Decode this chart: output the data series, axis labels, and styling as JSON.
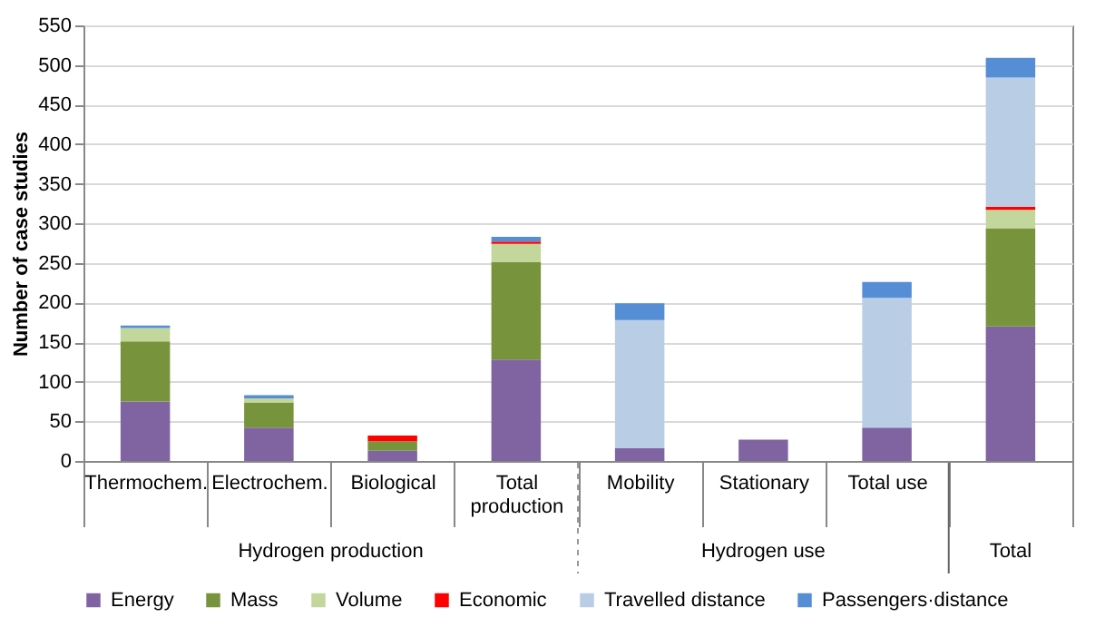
{
  "chart_data": {
    "type": "bar",
    "stacked": true,
    "ylabel": "Number of case studies",
    "categories": [
      "Thermochem.",
      "Electrochem.",
      "Biological",
      "Total production",
      "Mobility",
      "Stationary",
      "Total use",
      null
    ],
    "series": [
      {
        "name": "Energy",
        "color": "#8064a2",
        "values": [
          75,
          42,
          13,
          128,
          16,
          27,
          42,
          170
        ]
      },
      {
        "name": "Mass",
        "color": "#77933c",
        "values": [
          76,
          32,
          12,
          123,
          0,
          0,
          0,
          124
        ]
      },
      {
        "name": "Volume",
        "color": "#c3d69b",
        "values": [
          17,
          5,
          0,
          23,
          0,
          0,
          0,
          23
        ]
      },
      {
        "name": "Economic",
        "color": "#ff0000",
        "values": [
          0,
          0,
          7,
          3,
          0,
          0,
          0,
          4
        ]
      },
      {
        "name": "Travelled distance",
        "color": "#b9cde5",
        "values": [
          0,
          0,
          0,
          0,
          162,
          0,
          164,
          163
        ]
      },
      {
        "name": "Passengers·distance",
        "color": "#558ed5",
        "values": [
          3,
          4,
          0,
          6,
          21,
          0,
          20,
          25
        ]
      }
    ],
    "annotations": [
      "Hydrogen production",
      "Hydrogen use",
      "Total"
    ],
    "ylim": [
      0,
      550
    ],
    "yticks": [
      0,
      50,
      100,
      150,
      200,
      250,
      300,
      350,
      400,
      450,
      500,
      550
    ],
    "grid": "y",
    "legend": "bottom"
  }
}
